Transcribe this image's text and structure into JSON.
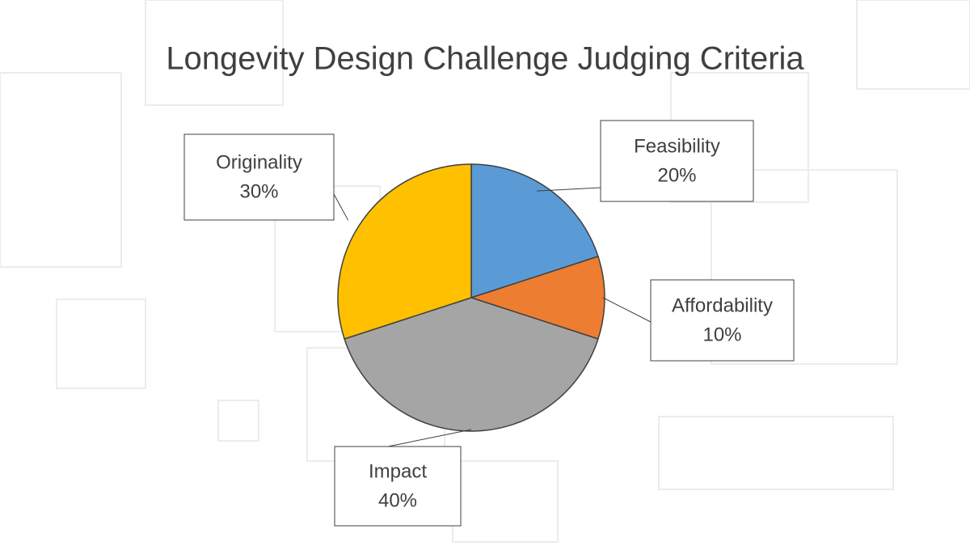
{
  "chart_data": {
    "type": "pie",
    "title": "Longevity Design Challenge Judging Criteria",
    "categories": [
      "Feasibility",
      "Affordability",
      "Impact",
      "Originality"
    ],
    "values": [
      20,
      10,
      40,
      30
    ],
    "value_labels": [
      "20%",
      "10%",
      "40%",
      "30%"
    ],
    "colors": [
      "#5b9bd5",
      "#ed7d31",
      "#a5a5a5",
      "#ffc000"
    ]
  }
}
